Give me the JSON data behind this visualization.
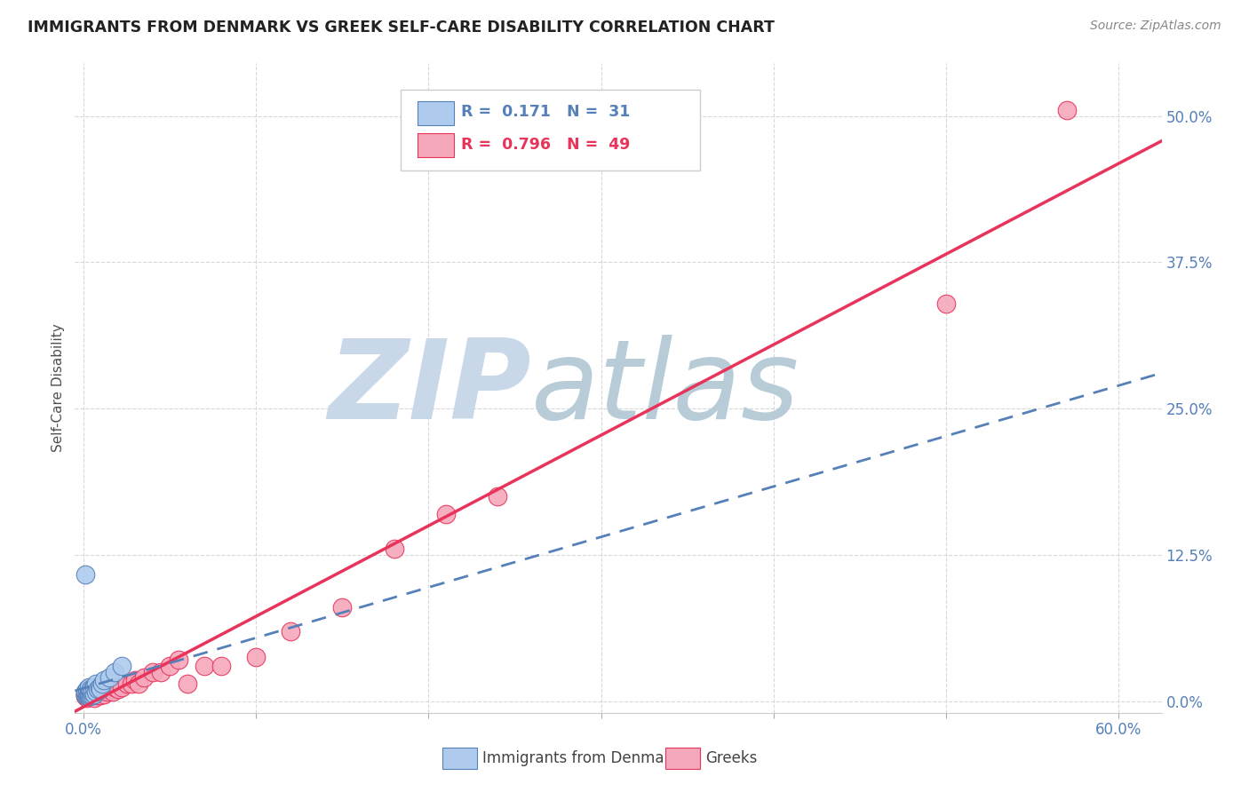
{
  "title": "IMMIGRANTS FROM DENMARK VS GREEK SELF-CARE DISABILITY CORRELATION CHART",
  "source": "Source: ZipAtlas.com",
  "ylabel": "Self-Care Disability",
  "ytick_labels": [
    "0.0%",
    "12.5%",
    "25.0%",
    "37.5%",
    "50.0%"
  ],
  "ytick_values": [
    0.0,
    0.125,
    0.25,
    0.375,
    0.5
  ],
  "xtick_values": [
    0.0,
    0.1,
    0.2,
    0.3,
    0.4,
    0.5,
    0.6
  ],
  "xtick_labels_show": [
    "0.0%",
    "",
    "",
    "",
    "",
    "",
    "60.0%"
  ],
  "xlim": [
    -0.005,
    0.625
  ],
  "ylim": [
    -0.01,
    0.545
  ],
  "denmark_color": "#aecbee",
  "greek_color": "#f5a8bc",
  "denmark_line_color": "#5580b8",
  "greek_line_color": "#e8335a",
  "background_color": "#ffffff",
  "grid_color": "#d8d8d8",
  "watermark_zip": "ZIP",
  "watermark_atlas": "atlas",
  "watermark_color_zip": "#c8d8e8",
  "watermark_color_atlas": "#b8ccd8",
  "title_color": "#222222",
  "axis_label_color": "#5580b8",
  "source_color": "#888888",
  "denmark_scatter_x": [
    0.001,
    0.001,
    0.001,
    0.002,
    0.002,
    0.002,
    0.002,
    0.003,
    0.003,
    0.003,
    0.003,
    0.003,
    0.004,
    0.004,
    0.004,
    0.005,
    0.005,
    0.005,
    0.006,
    0.006,
    0.007,
    0.007,
    0.008,
    0.009,
    0.01,
    0.011,
    0.012,
    0.015,
    0.018,
    0.022,
    0.001
  ],
  "denmark_scatter_y": [
    0.005,
    0.006,
    0.008,
    0.005,
    0.006,
    0.007,
    0.01,
    0.004,
    0.006,
    0.007,
    0.01,
    0.012,
    0.005,
    0.008,
    0.01,
    0.005,
    0.007,
    0.01,
    0.006,
    0.012,
    0.008,
    0.015,
    0.01,
    0.012,
    0.01,
    0.015,
    0.018,
    0.02,
    0.025,
    0.03,
    0.108
  ],
  "greek_scatter_x": [
    0.001,
    0.001,
    0.001,
    0.002,
    0.002,
    0.002,
    0.003,
    0.003,
    0.003,
    0.004,
    0.004,
    0.005,
    0.005,
    0.006,
    0.006,
    0.007,
    0.008,
    0.008,
    0.009,
    0.01,
    0.011,
    0.012,
    0.013,
    0.014,
    0.015,
    0.017,
    0.018,
    0.02,
    0.022,
    0.025,
    0.028,
    0.03,
    0.032,
    0.035,
    0.04,
    0.045,
    0.05,
    0.055,
    0.06,
    0.07,
    0.08,
    0.1,
    0.12,
    0.15,
    0.18,
    0.21,
    0.24,
    0.5,
    0.57
  ],
  "greek_scatter_y": [
    0.004,
    0.005,
    0.007,
    0.003,
    0.006,
    0.008,
    0.004,
    0.006,
    0.01,
    0.005,
    0.008,
    0.004,
    0.007,
    0.003,
    0.008,
    0.006,
    0.005,
    0.01,
    0.007,
    0.005,
    0.008,
    0.006,
    0.01,
    0.008,
    0.01,
    0.008,
    0.012,
    0.01,
    0.012,
    0.015,
    0.015,
    0.018,
    0.015,
    0.02,
    0.025,
    0.025,
    0.03,
    0.035,
    0.015,
    0.03,
    0.03,
    0.038,
    0.06,
    0.08,
    0.13,
    0.16,
    0.175,
    0.34,
    0.505
  ]
}
